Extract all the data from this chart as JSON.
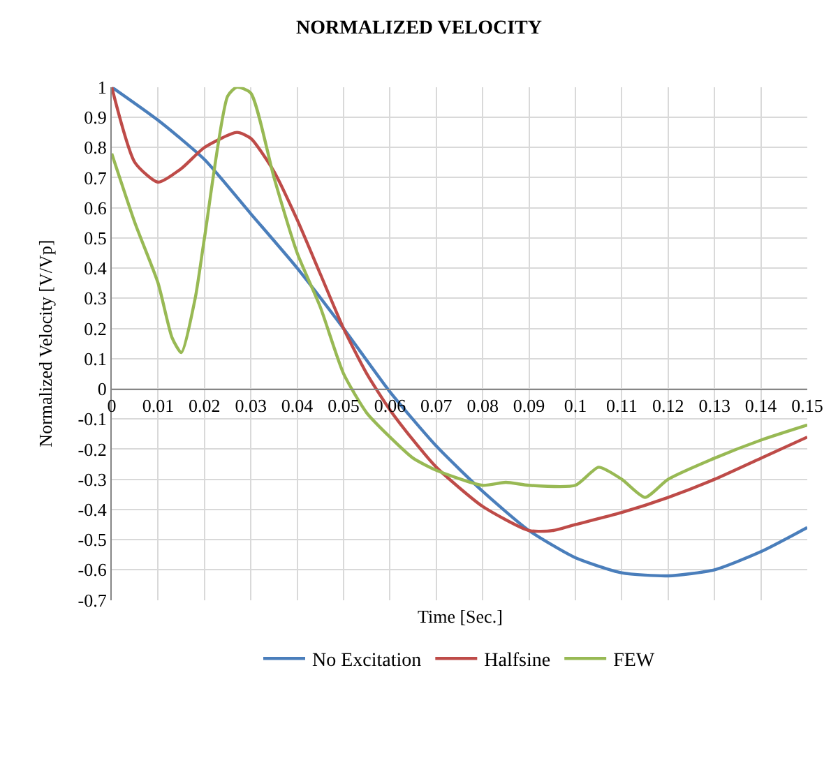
{
  "chart_data": {
    "type": "line",
    "title": "NORMALIZED VELOCITY",
    "xlabel": "Time [Sec.]",
    "ylabel": "Normalized Velocity [V/Vp]",
    "xlim": [
      0,
      0.15
    ],
    "xticks": [
      0,
      0.01,
      0.02,
      0.03,
      0.04,
      0.05,
      0.06,
      0.07,
      0.08,
      0.09,
      0.1,
      0.11,
      0.12,
      0.13,
      0.14,
      0.15
    ],
    "ylim": [
      -0.7,
      1
    ],
    "yticks": [
      -0.7,
      -0.6,
      -0.5,
      -0.4,
      -0.3,
      -0.2,
      -0.1,
      0,
      0.1,
      0.2,
      0.3,
      0.4,
      0.5,
      0.6,
      0.7,
      0.8,
      0.9,
      1
    ],
    "grid": true,
    "legend": "bottom",
    "marker": "none",
    "line_style": "solid",
    "series": [
      {
        "name": "No Excitation",
        "color": "#4a7ebb",
        "x": [
          0,
          0.01,
          0.02,
          0.03,
          0.04,
          0.05,
          0.06,
          0.07,
          0.08,
          0.09,
          0.1,
          0.11,
          0.12,
          0.13,
          0.14,
          0.15
        ],
        "values": [
          1,
          0.89,
          0.76,
          0.58,
          0.4,
          0.2,
          -0.01,
          -0.19,
          -0.34,
          -0.47,
          -0.56,
          -0.61,
          -0.62,
          -0.6,
          -0.54,
          -0.46
        ]
      },
      {
        "name": "Halfsine",
        "color": "#be4b48",
        "x": [
          0,
          0.005,
          0.01,
          0.015,
          0.02,
          0.027,
          0.03,
          0.035,
          0.04,
          0.045,
          0.05,
          0.055,
          0.06,
          0.065,
          0.07,
          0.08,
          0.09,
          0.095,
          0.1,
          0.11,
          0.12,
          0.13,
          0.14,
          0.15
        ],
        "values": [
          1,
          0.75,
          0.685,
          0.73,
          0.8,
          0.85,
          0.83,
          0.72,
          0.56,
          0.38,
          0.2,
          0.05,
          -0.07,
          -0.17,
          -0.26,
          -0.39,
          -0.47,
          -0.47,
          -0.45,
          -0.41,
          -0.36,
          -0.3,
          -0.23,
          -0.16
        ]
      },
      {
        "name": "FEW",
        "color": "#98b954",
        "x": [
          0,
          0.005,
          0.01,
          0.013,
          0.015,
          0.018,
          0.02,
          0.025,
          0.027,
          0.03,
          0.035,
          0.04,
          0.045,
          0.05,
          0.055,
          0.06,
          0.065,
          0.07,
          0.08,
          0.085,
          0.09,
          0.1,
          0.105,
          0.11,
          0.115,
          0.12,
          0.13,
          0.14,
          0.15
        ],
        "values": [
          0.78,
          0.55,
          0.35,
          0.17,
          0.12,
          0.3,
          0.5,
          0.97,
          1.0,
          0.98,
          0.7,
          0.45,
          0.27,
          0.05,
          -0.08,
          -0.16,
          -0.23,
          -0.27,
          -0.32,
          -0.31,
          -0.32,
          -0.32,
          -0.26,
          -0.3,
          -0.36,
          -0.3,
          -0.23,
          -0.17,
          -0.12
        ]
      }
    ]
  }
}
